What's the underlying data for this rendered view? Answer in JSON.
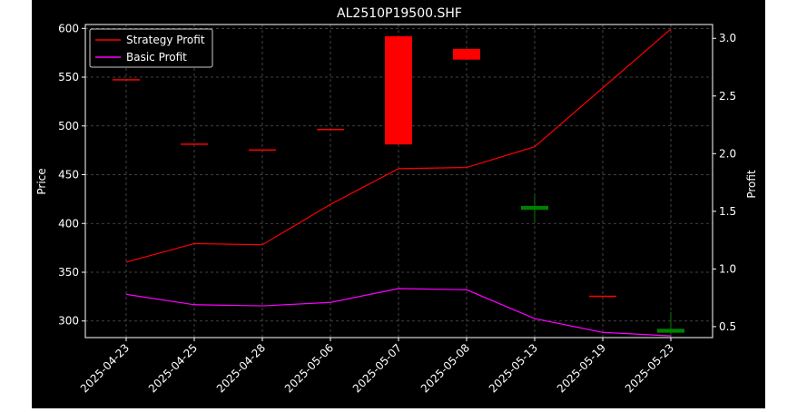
{
  "chart_data": {
    "type": "candlestick+line",
    "title": "AL2510P19500.SHF",
    "xlabel": "",
    "ylabel_left": "Price",
    "ylabel_right": "Profit",
    "categories": [
      "2025-04-23",
      "2025-04-25",
      "2025-04-28",
      "2025-05-06",
      "2025-05-07",
      "2025-05-08",
      "2025-05-13",
      "2025-05-19",
      "2025-05-23"
    ],
    "ylim_left": [
      283,
      604
    ],
    "ylim_right": [
      0.405,
      3.12
    ],
    "yticks_left": [
      300,
      350,
      400,
      450,
      500,
      550,
      600
    ],
    "yticks_right": [
      0.5,
      1.0,
      1.5,
      2.0,
      2.5,
      3.0
    ],
    "grid": true,
    "legend_position": "top-left",
    "candles": [
      {
        "date": "2025-04-23",
        "open": 548,
        "high": 548,
        "low": 548,
        "close": 548
      },
      {
        "date": "2025-04-25",
        "open": 482,
        "high": 482,
        "low": 482,
        "close": 482
      },
      {
        "date": "2025-04-28",
        "open": 476,
        "high": 476,
        "low": 476,
        "close": 476
      },
      {
        "date": "2025-05-06",
        "open": 497,
        "high": 497,
        "low": 497,
        "close": 497
      },
      {
        "date": "2025-05-07",
        "open": 481,
        "high": 592,
        "low": 481,
        "close": 592
      },
      {
        "date": "2025-05-08",
        "open": 568,
        "high": 579,
        "low": 568,
        "close": 579
      },
      {
        "date": "2025-05-13",
        "open": 418,
        "high": 428,
        "low": 402,
        "close": 414
      },
      {
        "date": "2025-05-19",
        "open": 326,
        "high": 326,
        "low": 326,
        "close": 326
      },
      {
        "date": "2025-05-23",
        "open": 292,
        "high": 309,
        "low": 286,
        "close": 288
      }
    ],
    "series": [
      {
        "name": "Strategy Profit",
        "axis": "right",
        "color": "#ff0000",
        "values": [
          1.06,
          1.22,
          1.21,
          1.56,
          1.87,
          1.88,
          2.06,
          2.57,
          3.08
        ]
      },
      {
        "name": "Basic Profit",
        "axis": "right",
        "color": "#ff00ff",
        "values": [
          0.78,
          0.69,
          0.68,
          0.71,
          0.83,
          0.82,
          0.57,
          0.45,
          0.42
        ]
      }
    ],
    "colors": {
      "up": "#ff0000",
      "down": "#008000",
      "background": "#000000",
      "axes": "#ffffff"
    }
  }
}
